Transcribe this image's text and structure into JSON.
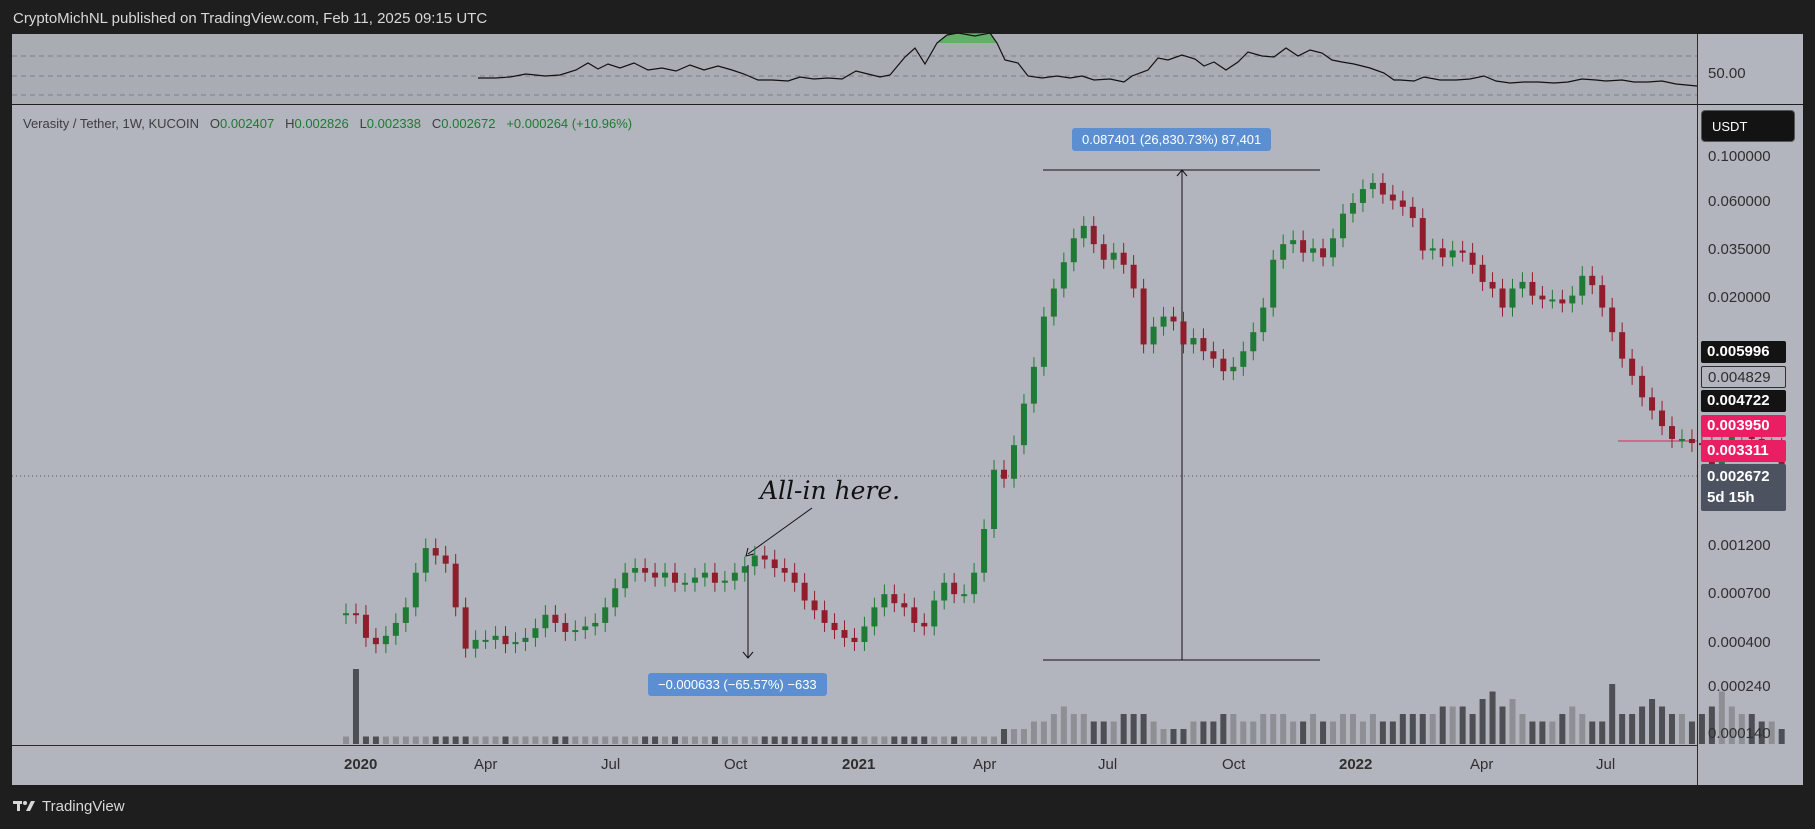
{
  "header": {
    "publisher": "CryptoMichNL published on TradingView.com, Feb 11, 2025 09:15 UTC"
  },
  "legend": {
    "symbol": "Verasity / Tether, 1W, KUCOIN",
    "o_label": "O",
    "o": "0.002407",
    "h_label": "H",
    "h": "0.002826",
    "l_label": "L",
    "l": "0.002338",
    "c_label": "C",
    "c": "0.002672",
    "change": "+0.000264 (+10.96%)"
  },
  "rsi": {
    "level_label": "50.00"
  },
  "currency_button": "USDT",
  "price_axis": {
    "ticks": [
      "0.100000",
      "0.060000",
      "0.035000",
      "0.020000",
      "0.001200",
      "0.000700",
      "0.000400",
      "0.000240",
      "0.000140"
    ]
  },
  "price_tags": {
    "t1": "0.005996",
    "t2": "0.004829",
    "t3": "0.004722",
    "t4": "0.003950",
    "t5": "0.003311",
    "last": "0.002672",
    "countdown": "5d 15h"
  },
  "time_axis": [
    "2020",
    "Apr",
    "Jul",
    "Oct",
    "2021",
    "Apr",
    "Jul",
    "Oct",
    "2022",
    "Apr",
    "Jul"
  ],
  "measurements": {
    "up": "0.087401 (26,830.73%) 87,401",
    "down": "−0.000633 (−65.57%) −633"
  },
  "annotation": "All-in here.",
  "footer": {
    "brand": "TradingView"
  },
  "colors": {
    "up": "#1f7a35",
    "down": "#8f1d2b",
    "volume_up": "#8d8f95",
    "volume_down": "#4d4f54",
    "measure": "#5b8fd1"
  },
  "chart_data": {
    "type": "candlestick",
    "symbol": "VRA/USDT",
    "interval": "1W",
    "yscale": "log",
    "x_range": [
      "2019-12-09",
      "2022-08-22"
    ],
    "closes": [
      0.00056,
      0.00055,
      0.00042,
      0.00039,
      0.00043,
      0.0005,
      0.0006,
      0.0009,
      0.0012,
      0.0011,
      0.001,
      0.0006,
      0.00037,
      0.00041,
      0.00041,
      0.00043,
      0.00039,
      0.0004,
      0.00042,
      0.00047,
      0.00055,
      0.0005,
      0.00045,
      0.00046,
      0.00048,
      0.0005,
      0.0006,
      0.00075,
      0.0009,
      0.00095,
      0.0009,
      0.00085,
      0.0009,
      0.0008,
      0.0008,
      0.00085,
      0.0009,
      0.0008,
      0.00082,
      0.0009,
      0.00097,
      0.0011,
      0.00105,
      0.00095,
      0.0009,
      0.0008,
      0.00065,
      0.00058,
      0.0005,
      0.00046,
      0.00042,
      0.0004,
      0.00048,
      0.0006,
      0.0007,
      0.00063,
      0.0006,
      0.0005,
      0.00048,
      0.00065,
      0.0008,
      0.0007,
      0.0007,
      0.0009,
      0.0015,
      0.003,
      0.0027,
      0.004,
      0.0065,
      0.01,
      0.018,
      0.025,
      0.034,
      0.045,
      0.052,
      0.042,
      0.035,
      0.038,
      0.033,
      0.025,
      0.013,
      0.016,
      0.018,
      0.017,
      0.013,
      0.014,
      0.012,
      0.011,
      0.0095,
      0.01,
      0.012,
      0.015,
      0.02,
      0.035,
      0.042,
      0.044,
      0.038,
      0.04,
      0.036,
      0.045,
      0.06,
      0.068,
      0.08,
      0.086,
      0.075,
      0.07,
      0.065,
      0.057,
      0.039,
      0.04,
      0.036,
      0.039,
      0.038,
      0.033,
      0.027,
      0.025,
      0.02,
      0.025,
      0.027,
      0.023,
      0.022,
      0.022,
      0.021,
      0.023,
      0.029,
      0.026,
      0.02,
      0.015,
      0.011,
      0.009,
      0.007,
      0.006,
      0.005,
      0.0043,
      0.0043,
      0.0041,
      0.004,
      0.0032,
      0.004,
      0.0045,
      0.005,
      0.0043,
      0.0038,
      0.0039,
      0.00267
    ],
    "volume": [
      1,
      10,
      1,
      1,
      1,
      1,
      1,
      1,
      1,
      1,
      1,
      1,
      1,
      1,
      1,
      1,
      1,
      1,
      1,
      1,
      1,
      1,
      1,
      1,
      1,
      1,
      1,
      1,
      1,
      1,
      1,
      1,
      1,
      1,
      1,
      1,
      1,
      1,
      1,
      1,
      1,
      1,
      1,
      1,
      1,
      1,
      1,
      1,
      1,
      1,
      1,
      1,
      1,
      1,
      1,
      1,
      1,
      1,
      1,
      1,
      1,
      1,
      1,
      1,
      1,
      1,
      2,
      2,
      2,
      3,
      3,
      4,
      5,
      4,
      4,
      3,
      3,
      3,
      4,
      4,
      4,
      3,
      2,
      2,
      2,
      3,
      3,
      3,
      4,
      4,
      3,
      3,
      4,
      4,
      4,
      3,
      3,
      4,
      3,
      3,
      4,
      4,
      3,
      4,
      3,
      3,
      4,
      4,
      4,
      4,
      5,
      5,
      5,
      4,
      6,
      7,
      5,
      6,
      4,
      3,
      3,
      3,
      4,
      5,
      4,
      3,
      3,
      8,
      4,
      4,
      5,
      6,
      5,
      4,
      4,
      3,
      4,
      5,
      7,
      5,
      4,
      4,
      3,
      3,
      2
    ]
  }
}
